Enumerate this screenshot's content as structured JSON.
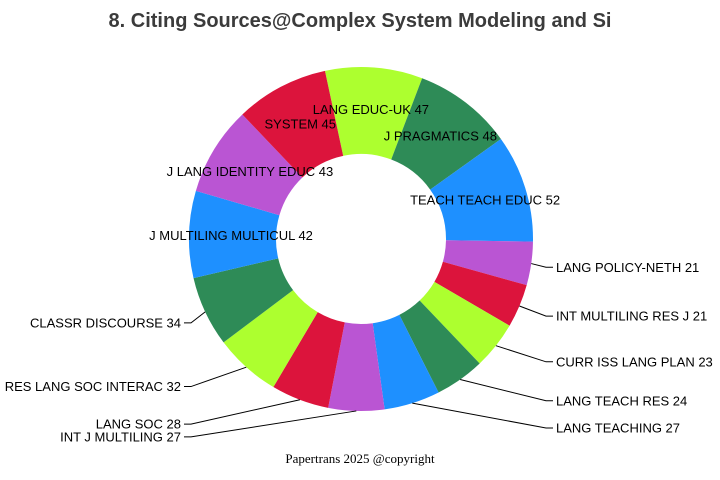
{
  "title": "8. Citing Sources@Complex System Modeling and Si",
  "footer": "Papertrans 2025 @copyright",
  "colors": {
    "title_text": "#3b3b3b",
    "footer_text": "#000000",
    "label_text": "#000000",
    "leader_line": "#000000",
    "background": "#ffffff",
    "palette_cycle": [
      "#ADFF2F",
      "#2E8B57",
      "#1E90FF",
      "#BA55D3",
      "#DC143C"
    ]
  },
  "chart_data": {
    "type": "pie",
    "subtype": "donut",
    "title": "8. Citing Sources@Complex System Modeling and Si",
    "total": 514,
    "start_angle_deg": -12.1,
    "direction": "clockwise",
    "label_format": "NAME VALUE",
    "legend": "none",
    "slices": [
      {
        "label": "LANG EDUC-UK",
        "value": 47,
        "color": "#ADFF2F"
      },
      {
        "label": "J PRAGMATICS",
        "value": 48,
        "color": "#2E8B57"
      },
      {
        "label": "TEACH TEACH EDUC",
        "value": 52,
        "color": "#1E90FF"
      },
      {
        "label": "LANG POLICY-NETH",
        "value": 21,
        "color": "#BA55D3"
      },
      {
        "label": "INT MULTILING RES J",
        "value": 21,
        "color": "#DC143C"
      },
      {
        "label": "CURR ISS LANG PLAN",
        "value": 23,
        "color": "#ADFF2F"
      },
      {
        "label": "LANG TEACH RES",
        "value": 24,
        "color": "#2E8B57"
      },
      {
        "label": "LANG TEACHING",
        "value": 27,
        "color": "#1E90FF"
      },
      {
        "label": "INT J MULTILING",
        "value": 27,
        "color": "#BA55D3"
      },
      {
        "label": "LANG SOC",
        "value": 28,
        "color": "#DC143C"
      },
      {
        "label": "RES LANG SOC INTERAC",
        "value": 32,
        "color": "#ADFF2F"
      },
      {
        "label": "CLASSR DISCOURSE",
        "value": 34,
        "color": "#2E8B57"
      },
      {
        "label": "J MULTILING MULTICUL",
        "value": 42,
        "color": "#1E90FF"
      },
      {
        "label": "J LANG IDENTITY EDUC",
        "value": 43,
        "color": "#BA55D3"
      },
      {
        "label": "SYSTEM",
        "value": 45,
        "color": "#DC143C"
      }
    ]
  }
}
